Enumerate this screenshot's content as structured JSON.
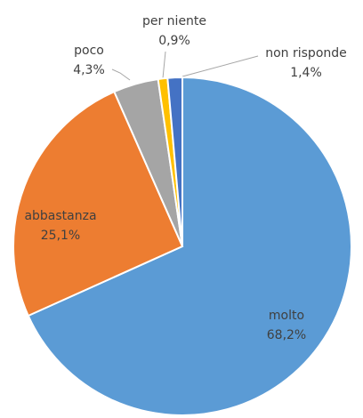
{
  "chart_data": {
    "type": "pie",
    "categories": [
      "molto",
      "abbastanza",
      "poco",
      "per niente",
      "non risponde"
    ],
    "values": [
      68.2,
      25.1,
      4.3,
      0.9,
      1.4
    ],
    "value_labels": [
      "68,2%",
      "25,1%",
      "4,3%",
      "0,9%",
      "1,4%"
    ],
    "colors": [
      "#5b9bd5",
      "#ed7d31",
      "#a5a5a5",
      "#ffc000",
      "#4472c4"
    ]
  }
}
